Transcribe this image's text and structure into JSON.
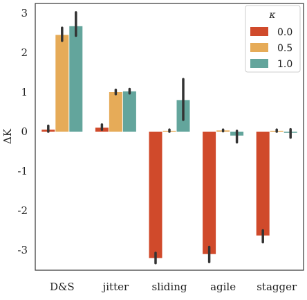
{
  "chart_data": {
    "type": "bar",
    "categories": [
      "D&S",
      "jitter",
      "sliding",
      "agile",
      "stagger"
    ],
    "series": [
      {
        "name": "0.0",
        "color": "#d04a2b",
        "values": [
          0.05,
          0.1,
          -3.2,
          -3.1,
          -2.63
        ],
        "err_low": [
          0.0,
          0.05,
          -3.33,
          -3.3,
          -2.8
        ],
        "err_high": [
          0.15,
          0.18,
          -3.07,
          -2.92,
          -2.5
        ]
      },
      {
        "name": "0.5",
        "color": "#e6ab58",
        "values": [
          2.45,
          1.0,
          0.02,
          0.03,
          0.02
        ],
        "err_low": [
          2.3,
          0.95,
          0.0,
          0.01,
          0.0
        ],
        "err_high": [
          2.63,
          1.06,
          0.05,
          0.05,
          0.05
        ]
      },
      {
        "name": "1.0",
        "color": "#63a59c",
        "values": [
          2.67,
          1.02,
          0.8,
          -0.1,
          -0.03
        ],
        "err_low": [
          2.43,
          0.97,
          0.3,
          -0.27,
          -0.15
        ],
        "err_high": [
          3.02,
          1.08,
          1.33,
          0.02,
          0.06
        ]
      }
    ],
    "ylabel": "ΔK",
    "ylim": [
      -3.6,
      3.2
    ],
    "yticks": [
      3,
      2,
      1,
      0,
      -1,
      -2,
      -3
    ],
    "ytick_labels": [
      "3",
      "2",
      "1",
      "0",
      "-1",
      "-2",
      "-3"
    ],
    "legend_title": "κ",
    "legend_position": "top-right",
    "grid": false
  }
}
